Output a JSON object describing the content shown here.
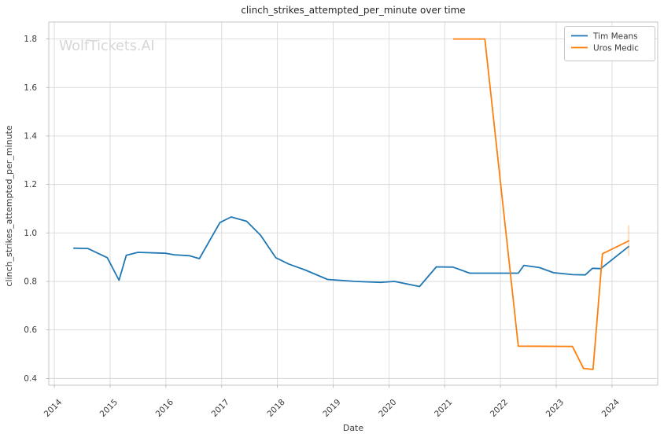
{
  "watermark": "WolfTickets.AI",
  "chart_data": {
    "type": "line",
    "title": "clinch_strikes_attempted_per_minute over time",
    "xlabel": "Date",
    "ylabel": "clinch_strikes_attempted_per_minute",
    "xlim": [
      2013.9,
      2024.82
    ],
    "ylim": [
      0.372,
      1.87
    ],
    "x_ticks": [
      2014,
      2015,
      2016,
      2017,
      2018,
      2019,
      2020,
      2021,
      2022,
      2023,
      2024
    ],
    "y_ticks": [
      0.4,
      0.6,
      0.8,
      1.0,
      1.2,
      1.4,
      1.6,
      1.8
    ],
    "grid": true,
    "legend_position": "upper-right",
    "series": [
      {
        "name": "Tim Means",
        "color": "#1f77b4",
        "points": [
          [
            2014.35,
            0.937
          ],
          [
            2014.6,
            0.936
          ],
          [
            2014.95,
            0.898
          ],
          [
            2015.16,
            0.805
          ],
          [
            2015.29,
            0.908
          ],
          [
            2015.5,
            0.92
          ],
          [
            2016.0,
            0.916
          ],
          [
            2016.15,
            0.91
          ],
          [
            2016.42,
            0.906
          ],
          [
            2016.6,
            0.894
          ],
          [
            2016.97,
            1.043
          ],
          [
            2017.17,
            1.066
          ],
          [
            2017.45,
            1.048
          ],
          [
            2017.7,
            0.99
          ],
          [
            2017.97,
            0.898
          ],
          [
            2018.2,
            0.872
          ],
          [
            2018.5,
            0.847
          ],
          [
            2018.9,
            0.808
          ],
          [
            2019.4,
            0.8
          ],
          [
            2019.85,
            0.796
          ],
          [
            2020.1,
            0.8
          ],
          [
            2020.55,
            0.779
          ],
          [
            2020.85,
            0.86
          ],
          [
            2021.15,
            0.859
          ],
          [
            2021.45,
            0.834
          ],
          [
            2022.32,
            0.834
          ],
          [
            2022.42,
            0.866
          ],
          [
            2022.7,
            0.857
          ],
          [
            2022.95,
            0.836
          ],
          [
            2023.3,
            0.828
          ],
          [
            2023.52,
            0.827
          ],
          [
            2023.65,
            0.854
          ],
          [
            2023.8,
            0.853
          ],
          [
            2024.3,
            0.944
          ]
        ]
      },
      {
        "name": "Uros Medic",
        "color": "#ff7f0e",
        "points": [
          [
            2021.16,
            1.8
          ],
          [
            2021.72,
            1.8
          ],
          [
            2022.32,
            0.533
          ],
          [
            2023.29,
            0.532
          ],
          [
            2023.49,
            0.441
          ],
          [
            2023.66,
            0.437
          ],
          [
            2023.83,
            0.914
          ],
          [
            2024.3,
            0.967
          ]
        ],
        "error_bar": {
          "x": 2024.3,
          "low": 0.905,
          "high": 1.032
        }
      }
    ]
  },
  "colors": {
    "grid": "#d9d9d9",
    "spine": "#c6c6c6",
    "tick_mark": "#b5b5b5",
    "text": "#3b3b3b",
    "title": "#262626",
    "watermark": "#d6d6d6",
    "background": "#ffffff"
  }
}
